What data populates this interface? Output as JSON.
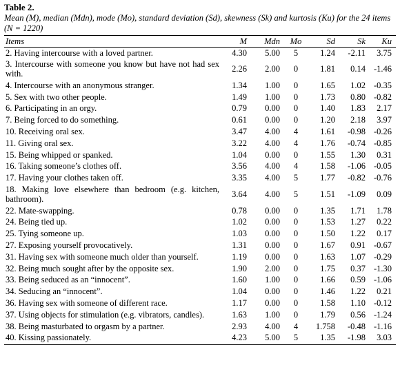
{
  "header": {
    "title": "Table 2.",
    "caption": "Mean (M), median (Mdn), mode (Mo), standard deviation (Sd), skewness (Sk) and kurtosis (Ku) for the 24 items (N = 1220)"
  },
  "table": {
    "columns": [
      "Items",
      "M",
      "Mdn",
      "Mo",
      "Sd",
      "Sk",
      "Ku"
    ],
    "rows": [
      [
        "2. Having intercourse with a loved partner.",
        "4.30",
        "5.00",
        "5",
        "1.24",
        "-2.11",
        "3.75"
      ],
      [
        "3. Intercourse with someone you know but have not had sex with.",
        "2.26",
        "2.00",
        "0",
        "1.81",
        "0.14",
        "-1.46"
      ],
      [
        "4. Intercourse with an anonymous stranger.",
        "1.34",
        "1.00",
        "0",
        "1.65",
        "1.02",
        "-0.35"
      ],
      [
        "5. Sex with two other people.",
        "1.49",
        "1.00",
        "0",
        "1.73",
        "0.80",
        "-0.82"
      ],
      [
        "6. Participating in an orgy.",
        "0.79",
        "0.00",
        "0",
        "1.40",
        "1.83",
        "2.17"
      ],
      [
        "7. Being forced to do something.",
        "0.61",
        "0.00",
        "0",
        "1.20",
        "2.18",
        "3.97"
      ],
      [
        "10. Receiving oral sex.",
        "3.47",
        "4.00",
        "4",
        "1.61",
        "-0.98",
        "-0.26"
      ],
      [
        "11. Giving oral sex.",
        "3.22",
        "4.00",
        "4",
        "1.76",
        "-0.74",
        "-0.85"
      ],
      [
        "15. Being whipped or spanked.",
        "1.04",
        "0.00",
        "0",
        "1.55",
        "1.30",
        "0.31"
      ],
      [
        "16. Taking someone’s clothes off.",
        "3.56",
        "4.00",
        "4",
        "1.58",
        "-1.06",
        "-0.05"
      ],
      [
        "17. Having your clothes taken off.",
        "3.35",
        "4.00",
        "5",
        "1.77",
        "-0.82",
        "-0.76"
      ],
      [
        "18. Making love elsewhere than bedroom (e.g. kitchen, bathroom).",
        "3.64",
        "4.00",
        "5",
        "1.51",
        "-1.09",
        "0.09"
      ],
      [
        "22. Mate-swapping.",
        "0.78",
        "0.00",
        "0",
        "1.35",
        "1.71",
        "1.78"
      ],
      [
        "24. Being tied up.",
        "1.02",
        "0.00",
        "0",
        "1.53",
        "1.27",
        "0.22"
      ],
      [
        "25. Tying someone up.",
        "1.03",
        "0.00",
        "0",
        "1.50",
        "1.22",
        "0.17"
      ],
      [
        "27. Exposing yourself provocatively.",
        "1.31",
        "0.00",
        "0",
        "1.67",
        "0.91",
        "-0.67"
      ],
      [
        "31. Having sex with someone much older than yourself.",
        "1.19",
        "0.00",
        "0",
        "1.63",
        "1.07",
        "-0.29"
      ],
      [
        "32. Being much sought after by the opposite sex.",
        "1.90",
        "2.00",
        "0",
        "1.75",
        "0.37",
        "-1.30"
      ],
      [
        "33. Being seduced as an “innocent”.",
        "1.60",
        "1.00",
        "0",
        "1.66",
        "0.59",
        "-1.06"
      ],
      [
        "34. Seducing an “innocent”.",
        "1.04",
        "0.00",
        "0",
        "1.46",
        "1.22",
        "0.21"
      ],
      [
        "36. Having sex with someone of different race.",
        "1.17",
        "0.00",
        "0",
        "1.58",
        "1.10",
        "-0.12"
      ],
      [
        "37. Using objects for stimulation (e.g. vibrators, candles).",
        "1.63",
        "1.00",
        "0",
        "1.79",
        "0.56",
        "-1.24"
      ],
      [
        "38. Being masturbated to orgasm by a partner.",
        "2.93",
        "4.00",
        "4",
        "1.758",
        "-0.48",
        "-1.16"
      ],
      [
        "40. Kissing passionately.",
        "4.23",
        "5.00",
        "5",
        "1.35",
        "-1.98",
        "3.03"
      ]
    ]
  }
}
